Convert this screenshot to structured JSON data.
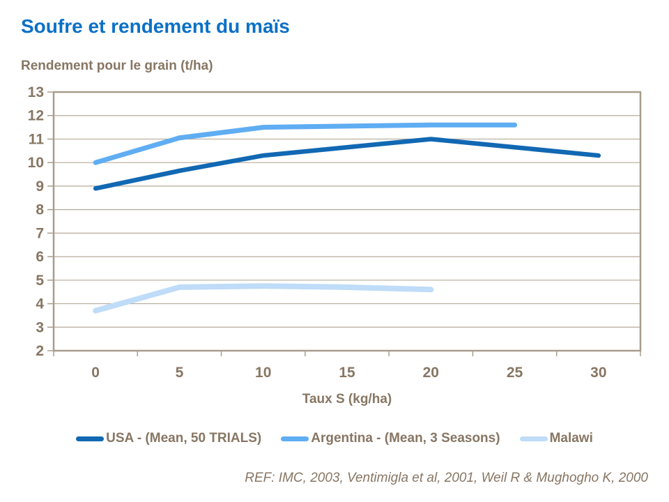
{
  "title": "Soufre et rendement du maïs",
  "footer": {
    "reference": "REF: IMC,  2003, Ventimigla et al, 2001, Weil R & Mughogho K, 2000"
  },
  "colors": {
    "title_blue": "#0B70C6",
    "axis_text_brown": "#877663",
    "gridline": "#B5AA99",
    "plot_frame": "#A89D8D",
    "series_usa": "#1168B3",
    "series_argentina": "#5FADF2",
    "series_malawi": "#BFDCF8"
  },
  "chart_data": {
    "type": "line",
    "title": "Soufre et rendement du maïs",
    "xlabel": "Taux S (kg/ha)",
    "ylabel": "Rendement pour le grain (t/ha)",
    "x": [
      0,
      5,
      10,
      15,
      20,
      25,
      30
    ],
    "ylim": [
      2,
      13
    ],
    "y_ticks": [
      2,
      3,
      4,
      5,
      6,
      7,
      8,
      9,
      10,
      11,
      12,
      13
    ],
    "grid": "horizontal",
    "legend_position": "bottom",
    "series": [
      {
        "name": "USA - (Mean, 50 TRIALS)",
        "color": "#1168B3",
        "values": [
          8.9,
          9.65,
          10.3,
          10.65,
          11.0,
          10.65,
          10.3
        ]
      },
      {
        "name": "Argentina - (Mean, 3 Seasons)",
        "color": "#5FADF2",
        "values": [
          10.0,
          11.05,
          11.5,
          11.55,
          11.6,
          11.6,
          null
        ]
      },
      {
        "name": "Malawi",
        "color": "#BFDCF8",
        "values": [
          3.7,
          4.7,
          4.75,
          4.7,
          4.6,
          null,
          null
        ]
      }
    ]
  }
}
